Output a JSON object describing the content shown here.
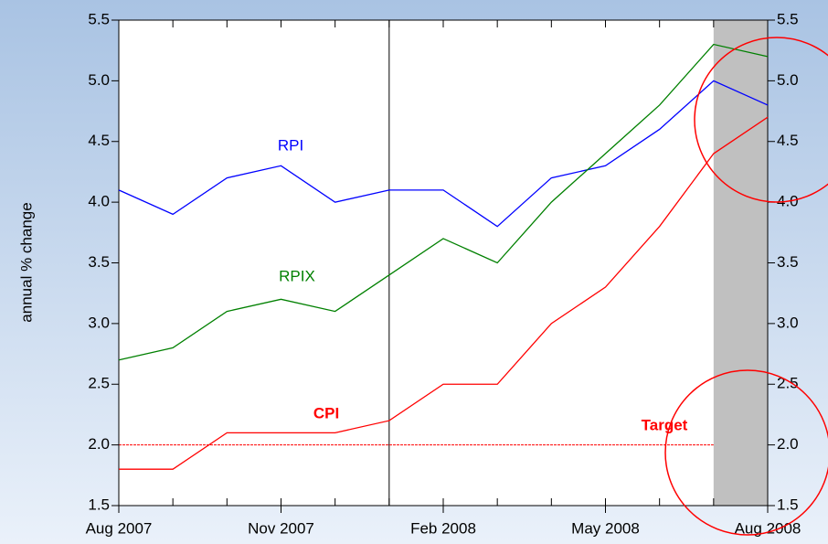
{
  "chart_data": {
    "type": "line",
    "y_label": "annual % change",
    "categories": [
      "Aug 2007",
      null,
      null,
      "Nov 2007",
      null,
      null,
      "Feb 2008",
      null,
      null,
      "May 2008",
      null,
      null,
      "Aug 2008"
    ],
    "series": [
      {
        "name": "RPI",
        "color": "#0000ff",
        "values": [
          4.1,
          3.9,
          4.2,
          4.3,
          4.0,
          4.1,
          4.1,
          3.8,
          4.2,
          4.3,
          4.6,
          5.0,
          4.8
        ]
      },
      {
        "name": "RPIX",
        "color": "#008000",
        "values": [
          2.7,
          2.8,
          3.1,
          3.2,
          3.1,
          3.4,
          3.7,
          3.5,
          4.0,
          4.4,
          4.8,
          5.3,
          5.2
        ]
      },
      {
        "name": "CPI",
        "color": "#ff0000",
        "values": [
          1.8,
          1.8,
          2.1,
          2.1,
          2.1,
          2.2,
          2.5,
          2.5,
          3.0,
          3.3,
          3.8,
          4.4,
          4.7
        ]
      }
    ],
    "target": {
      "label": "Target",
      "value": 2.0,
      "color": "#ff0000"
    },
    "ylim": [
      1.5,
      5.5
    ],
    "yticks": [
      1.5,
      {
        "value": 2,
        "label": "2.0"
      },
      2.5,
      {
        "value": 3,
        "label": "3.0"
      },
      3.5,
      {
        "value": 4,
        "label": "4.0"
      },
      4.5,
      {
        "value": 5,
        "label": "5.0"
      },
      5.5
    ],
    "y2lim": [
      1.5,
      5.5
    ],
    "y2ticks": [
      1.5,
      {
        "value": 2,
        "label": "2.0"
      },
      2.5,
      {
        "value": 3,
        "label": "3.0"
      },
      3.5,
      {
        "value": 4,
        "label": "4.0"
      },
      4.5,
      {
        "value": 5,
        "label": "5.0"
      },
      5.5
    ]
  }
}
